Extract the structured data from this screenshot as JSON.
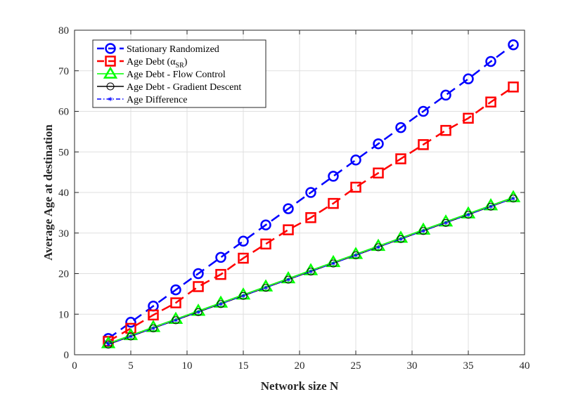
{
  "chart_data": {
    "type": "line",
    "xlabel": "Network size N",
    "ylabel": "Average Age at destination",
    "xlim": [
      0,
      40
    ],
    "ylim": [
      0,
      80
    ],
    "xticks": [
      0,
      5,
      10,
      15,
      20,
      25,
      30,
      35,
      40
    ],
    "yticks": [
      0,
      10,
      20,
      30,
      40,
      50,
      60,
      70,
      80
    ],
    "grid": true,
    "legend_position": "top-left",
    "x": [
      3,
      5,
      7,
      9,
      11,
      13,
      15,
      17,
      19,
      21,
      23,
      25,
      27,
      29,
      31,
      33,
      35,
      37,
      39
    ],
    "series": [
      {
        "name": "Stationary Randomized",
        "color": "#0000ff",
        "line_style": "dashed",
        "marker": "circle",
        "values": [
          4,
          8,
          12,
          16,
          20,
          24,
          28,
          32,
          36,
          40,
          44,
          48,
          52,
          56,
          60,
          64,
          68,
          72.3,
          76.4
        ]
      },
      {
        "name": "Age Debt (α",
        "name_sub": "SR",
        "name_suffix": ")",
        "color": "#ff0000",
        "line_style": "dashed",
        "marker": "square",
        "values": [
          3.3,
          6.5,
          9.8,
          12.8,
          16.8,
          19.8,
          23.8,
          27.3,
          30.8,
          33.8,
          37.3,
          41.3,
          44.8,
          48.3,
          51.8,
          55.3,
          58.3,
          62.3,
          66
        ]
      },
      {
        "name": "Age Debt - Flow Control",
        "color": "#00ff00",
        "line_style": "solid",
        "marker": "triangle",
        "values": [
          2.8,
          4.8,
          6.8,
          8.8,
          10.8,
          12.8,
          14.8,
          16.8,
          18.8,
          20.8,
          22.8,
          24.8,
          26.8,
          28.8,
          30.8,
          32.8,
          34.8,
          36.8,
          38.8
        ]
      },
      {
        "name": "Age Debt - Gradient Descent",
        "color": "#000000",
        "line_style": "solid",
        "marker": "open-circle",
        "values": [
          2.5,
          4.5,
          6.5,
          8.5,
          10.5,
          12.5,
          14.5,
          16.5,
          18.5,
          20.5,
          22.5,
          24.5,
          26.5,
          28.5,
          30.5,
          32.5,
          34.5,
          36.5,
          38.5
        ]
      },
      {
        "name": "Age Difference",
        "color": "#0000ff",
        "line_style": "dash-dot",
        "marker": "asterisk",
        "values": [
          2.5,
          4.5,
          6.5,
          8.5,
          10.5,
          12.5,
          14.5,
          16.5,
          18.5,
          20.5,
          22.5,
          24.5,
          26.5,
          28.5,
          30.5,
          32.5,
          34.5,
          36.5,
          38.5
        ]
      }
    ]
  }
}
